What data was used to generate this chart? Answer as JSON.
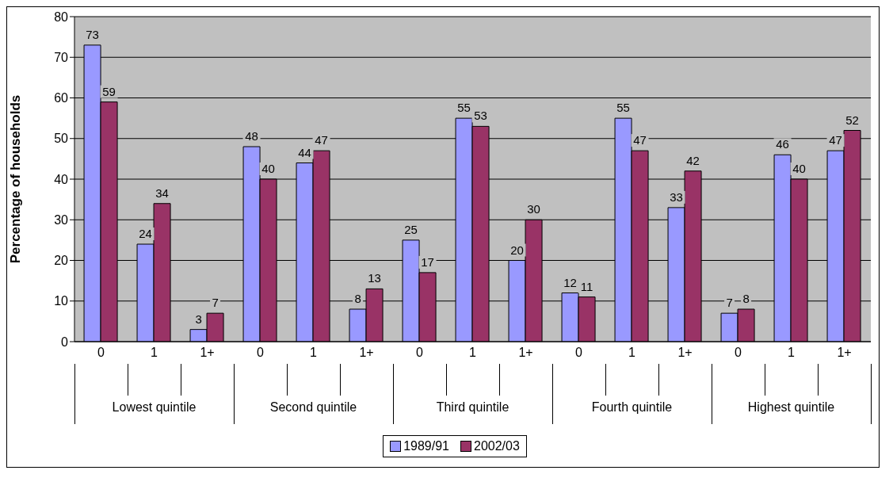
{
  "chart_data": {
    "type": "bar",
    "ylabel": "Percentage of households",
    "categories": [
      "0",
      "1",
      "1+",
      "0",
      "1",
      "1+",
      "0",
      "1",
      "1+",
      "0",
      "1",
      "1+",
      "0",
      "1",
      "1+"
    ],
    "annotations": [
      "Lowest quintile",
      "Second quintile",
      "Third quintile",
      "Fourth quintile",
      "Highest quintile"
    ],
    "series": [
      {
        "name": "1989/91",
        "color": "#9999ff",
        "values": [
          73,
          24,
          3,
          48,
          44,
          8,
          25,
          55,
          20,
          12,
          55,
          33,
          7,
          46,
          47
        ]
      },
      {
        "name": "2002/03",
        "color": "#993366",
        "values": [
          59,
          34,
          7,
          40,
          47,
          13,
          17,
          53,
          30,
          11,
          47,
          42,
          8,
          40,
          52
        ]
      }
    ],
    "ylim": [
      0,
      80
    ],
    "yticks": [
      0,
      10,
      20,
      30,
      40,
      50,
      60,
      70,
      80
    ],
    "grid": "y",
    "legend": "bottom",
    "data_labels": true
  }
}
